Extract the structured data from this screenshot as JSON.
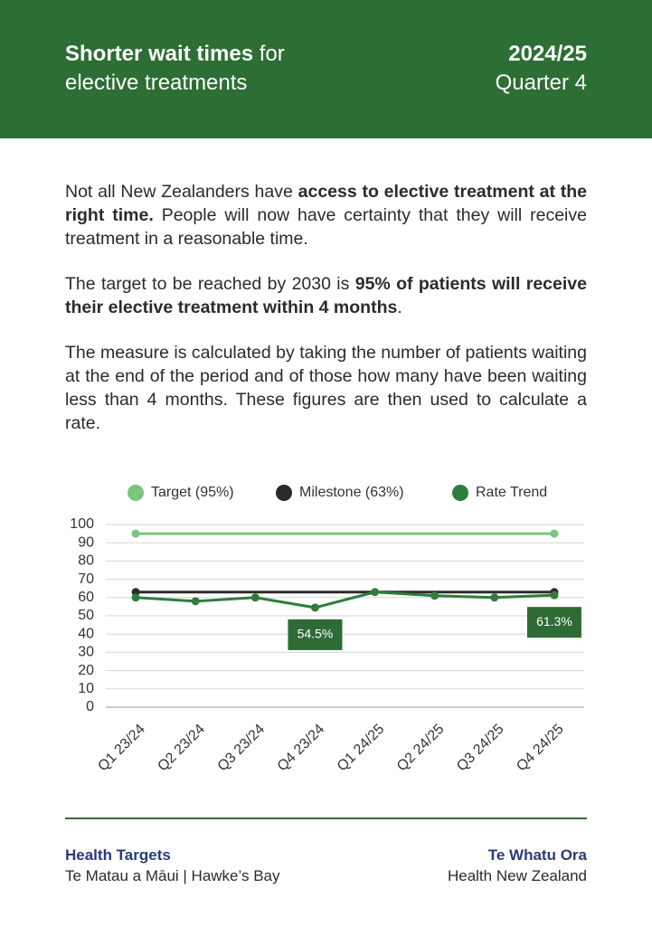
{
  "header": {
    "title": [
      {
        "text": "Shorter wait times",
        "bold": true
      },
      {
        "text": " for",
        "bold": false
      }
    ],
    "subtitle": "elective treatments",
    "year": "2024/25",
    "quarter": "Quarter 4"
  },
  "paragraphs": [
    [
      {
        "text": "Not all New Zealanders have ",
        "bold": false
      },
      {
        "text": "access to elective treatment at the right time.",
        "bold": true
      },
      {
        "text": " People will now have certainty that they will receive treatment in a reasonable time.",
        "bold": false
      }
    ],
    [
      {
        "text": "The target to be reached by 2030 is ",
        "bold": false
      },
      {
        "text": "95% of patients will receive their elective treatment within 4 months",
        "bold": true
      },
      {
        "text": ".",
        "bold": false
      }
    ],
    [
      {
        "text": "The measure is calculated by taking the number of patients waiting at the end of the period and of those how many have been waiting less than 4 months. These figures are then used to calculate a rate.",
        "bold": false
      }
    ]
  ],
  "chart_data": {
    "type": "line",
    "categories": [
      "Q1 23/24",
      "Q2 23/24",
      "Q3 23/24",
      "Q4 23/24",
      "Q1 24/25",
      "Q2 24/25",
      "Q3 24/25",
      "Q4 24/25"
    ],
    "series": [
      {
        "name": "Target (95%)",
        "color": "#7cc47f",
        "markers": "ends",
        "values": [
          95,
          95,
          95,
          95,
          95,
          95,
          95,
          95
        ]
      },
      {
        "name": "Milestone (63%)",
        "color": "#2b2b2b",
        "markers": "ends",
        "values": [
          63,
          63,
          63,
          63,
          63,
          63,
          63,
          63
        ]
      },
      {
        "name": "Rate Trend",
        "color": "#2f7d3d",
        "markers": "all",
        "values": [
          60,
          58,
          60,
          54.5,
          63,
          61,
          60,
          61.3
        ],
        "value_labels": [
          null,
          null,
          null,
          "54.5%",
          null,
          null,
          null,
          "61.3%"
        ]
      }
    ],
    "ylim": [
      0,
      100
    ],
    "yticks": [
      0,
      10,
      20,
      30,
      40,
      50,
      60,
      70,
      80,
      90,
      100
    ],
    "grid": true,
    "legend": "top"
  },
  "footer": {
    "left_title": "Health Targets",
    "left_subtitle": "Te Matau a Māui | Hawke’s Bay",
    "right_title": "Te Whatu Ora",
    "right_subtitle": "Health New Zealand"
  }
}
